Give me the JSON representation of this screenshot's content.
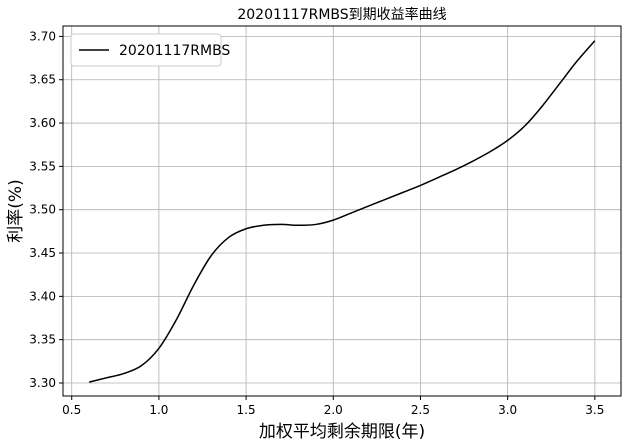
{
  "chart_data": {
    "type": "line",
    "title": "20201117RMBS到期收益率曲线",
    "xlabel": "加权平均剩余期限(年)",
    "ylabel": "利率(%)",
    "xlim": [
      0.45,
      3.65
    ],
    "ylim": [
      3.285,
      3.712
    ],
    "xticks": [
      "0.5",
      "1.0",
      "1.5",
      "2.0",
      "2.5",
      "3.0",
      "3.5"
    ],
    "yticks": [
      "3.30",
      "3.35",
      "3.40",
      "3.45",
      "3.50",
      "3.55",
      "3.60",
      "3.65",
      "3.70"
    ],
    "grid": true,
    "legend_position": "top-left",
    "line_color": "#000000",
    "series": [
      {
        "name": "20201117RMBS",
        "x": [
          0.6,
          0.7,
          0.8,
          0.9,
          1.0,
          1.1,
          1.2,
          1.3,
          1.4,
          1.5,
          1.6,
          1.7,
          1.8,
          1.9,
          2.0,
          2.1,
          2.2,
          2.3,
          2.4,
          2.5,
          2.6,
          2.7,
          2.8,
          2.9,
          3.0,
          3.1,
          3.2,
          3.3,
          3.4,
          3.5
        ],
        "y": [
          3.301,
          3.306,
          3.311,
          3.32,
          3.34,
          3.373,
          3.413,
          3.447,
          3.468,
          3.478,
          3.482,
          3.483,
          3.482,
          3.483,
          3.488,
          3.496,
          3.504,
          3.512,
          3.52,
          3.528,
          3.537,
          3.546,
          3.556,
          3.567,
          3.58,
          3.597,
          3.62,
          3.646,
          3.672,
          3.695
        ]
      }
    ]
  }
}
